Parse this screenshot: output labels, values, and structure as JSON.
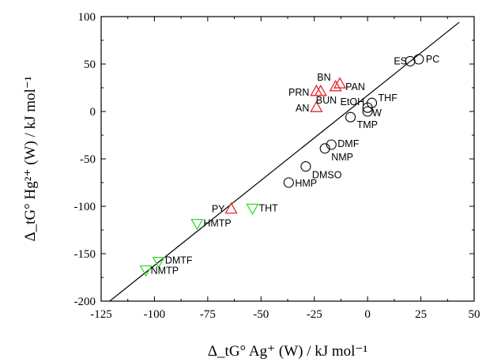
{
  "chart_data": {
    "type": "scatter",
    "xlabel": "Δ_tG° Ag⁺ (W) / kJ mol⁻¹",
    "ylabel": "Δ_tG° Hg²⁺ (W) / kJ mol⁻¹",
    "xlim": [
      -125,
      50
    ],
    "ylim": [
      -200,
      100
    ],
    "x_ticks": [
      -125,
      -100,
      -75,
      -50,
      -25,
      0,
      25,
      50
    ],
    "y_ticks": [
      -200,
      -150,
      -100,
      -50,
      0,
      50,
      100
    ],
    "grid": false,
    "legend": "none",
    "fit_line": {
      "x": [
        -121,
        43
      ],
      "y": [
        -200,
        94
      ]
    },
    "series": [
      {
        "marker": "circle",
        "color": "#000000",
        "points": [
          {
            "label": "PC",
            "x": 24,
            "y": 55
          },
          {
            "label": "ES",
            "x": 20,
            "y": 53
          },
          {
            "label": "THF",
            "x": 2,
            "y": 9
          },
          {
            "label": "EtOH",
            "x": 0,
            "y": 4
          },
          {
            "label": "W",
            "x": 0,
            "y": 0
          },
          {
            "label": "TMP",
            "x": -8,
            "y": -6
          },
          {
            "label": "DMF",
            "x": -17,
            "y": -35
          },
          {
            "label": "NMP",
            "x": -20,
            "y": -39
          },
          {
            "label": "DMSO",
            "x": -29,
            "y": -58
          },
          {
            "label": "HMP",
            "x": -37,
            "y": -75
          }
        ]
      },
      {
        "marker": "triangle-up",
        "color": "#e8262a",
        "points": [
          {
            "label": "BN",
            "x": -15,
            "y": 26
          },
          {
            "label": "PAN",
            "x": -13,
            "y": 29
          },
          {
            "label": "PRN",
            "x": -24,
            "y": 21
          },
          {
            "label": "BUN",
            "x": -22,
            "y": 21
          },
          {
            "label": "AN",
            "x": -24,
            "y": 4
          },
          {
            "label": "PY",
            "x": -64,
            "y": -103
          }
        ]
      },
      {
        "marker": "triangle-down",
        "color": "#39d631",
        "points": [
          {
            "label": "THT",
            "x": -54,
            "y": -102
          },
          {
            "label": "HMTP",
            "x": -80,
            "y": -118
          },
          {
            "label": "DMTF",
            "x": -98,
            "y": -158
          },
          {
            "label": "NMTP",
            "x": -104,
            "y": -167
          }
        ]
      }
    ]
  }
}
